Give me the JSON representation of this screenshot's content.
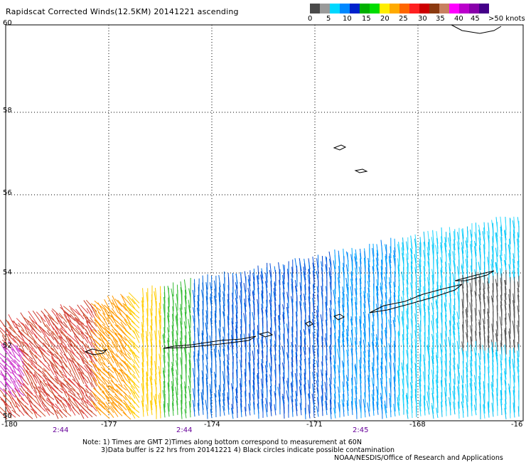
{
  "title": "Rapidscat Corrected Winds(12.5KM) 20141221 ascending",
  "legend": {
    "colors": [
      "#4a4a4a",
      "#9a9a9a",
      "#00d8ff",
      "#0088ff",
      "#0022cc",
      "#00b000",
      "#00dd00",
      "#ffee00",
      "#ffaa00",
      "#ff6600",
      "#ff2020",
      "#cc0000",
      "#8b3a10",
      "#c88060",
      "#ff00ff",
      "#bb00cc",
      "#8800aa",
      "#440088"
    ],
    "labels": [
      "0",
      "5",
      "10",
      "15",
      "20",
      "25",
      "30",
      "35",
      "40",
      "45",
      ">50 knots"
    ]
  },
  "axes": {
    "lat_labels": [
      "60",
      "58",
      "56",
      "54",
      "52",
      "50"
    ],
    "lon_labels": [
      "-180",
      "-177",
      "-174",
      "-171",
      "-168",
      "-16"
    ],
    "time_labels": [
      "2:44",
      "2:44",
      "2:45"
    ]
  },
  "notes": {
    "line1": "Note: 1) Times are GMT 2)Times along bottom correspond to measurement at 60N",
    "line2": "3)Data buffer is 22 hrs from 20141221 4) Black circles indicate possible contamination",
    "line3": "NOAA/NESDIS/Office of Research and Applications"
  },
  "colors": {
    "grid": "#000000",
    "coast": "#000000",
    "time_label": "#660099"
  }
}
